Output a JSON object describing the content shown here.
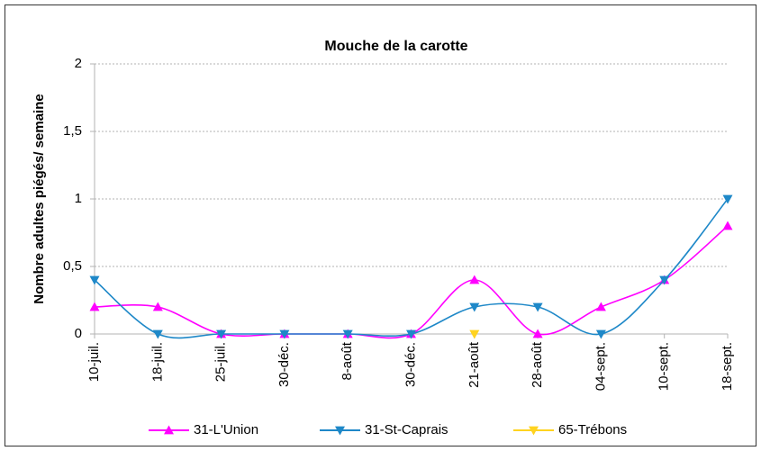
{
  "chart_data": {
    "type": "line",
    "title": "Mouche de la carotte",
    "ylabel": "Nombre adultes piégés/ semaine",
    "categories": [
      "10-juil.",
      "18-juil.",
      "25-juil.",
      "30-déc.",
      "8-août",
      "30-déc.",
      "21-août",
      "28-août",
      "04-sept.",
      "10-sept.",
      "18-sept."
    ],
    "series": [
      {
        "name": "31-L'Union",
        "color": "#ff00ff",
        "marker": "up",
        "values": [
          0.2,
          0.2,
          0,
          0,
          0,
          0,
          0.4,
          0,
          0.2,
          0.4,
          0.8
        ]
      },
      {
        "name": "31-St-Caprais",
        "color": "#1e88c8",
        "marker": "down",
        "values": [
          0.4,
          0,
          0,
          0,
          0,
          0,
          0.2,
          0.2,
          0,
          0.4,
          1
        ]
      },
      {
        "name": "65-Trébons",
        "color": "#ffd320",
        "marker": "down",
        "values": [
          null,
          null,
          null,
          null,
          null,
          null,
          0,
          null,
          null,
          null,
          null
        ]
      }
    ],
    "ylim": [
      0,
      2
    ],
    "yticks": [
      0,
      {
        "value": 0.5,
        "label": "0,5"
      },
      1,
      {
        "value": 1.5,
        "label": "1,5"
      },
      2
    ],
    "grid": true,
    "legend": "bottom"
  }
}
